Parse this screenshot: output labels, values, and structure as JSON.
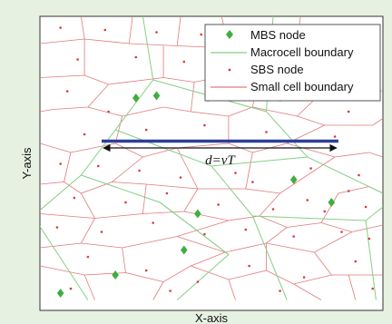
{
  "chart_data": {
    "type": "scatter",
    "xlabel": "X-axis",
    "ylabel": "Y-axis",
    "xlim": [
      0,
      1
    ],
    "ylim": [
      0,
      1
    ],
    "grid": false,
    "legend_placement": "top-right",
    "legend": [
      {
        "label": "MBS node",
        "marker": "diamond",
        "color": "#3fae3f"
      },
      {
        "label": "Macrocell boundary",
        "marker": "line",
        "color": "#86cf86"
      },
      {
        "label": "SBS node",
        "marker": "dot",
        "color": "#d23c3c"
      },
      {
        "label": "Small cell boundary",
        "marker": "line",
        "color": "#e07a7a"
      }
    ],
    "annotation": {
      "text": "d=vT",
      "arrow_from": [
        0.18,
        0.42
      ],
      "arrow_to": [
        0.87,
        0.42
      ],
      "trajectory_y": 0.45,
      "trajectory_color": "#2b3f9c"
    },
    "mbs_nodes": [
      {
        "x": 0.28,
        "y": 0.64
      },
      {
        "x": 0.34,
        "y": 0.65
      },
      {
        "x": 0.74,
        "y": 0.28
      },
      {
        "x": 0.85,
        "y": 0.18
      },
      {
        "x": 0.46,
        "y": 0.13
      },
      {
        "x": 0.42,
        "y": -0.03
      },
      {
        "x": 0.22,
        "y": -0.14
      },
      {
        "x": 0.06,
        "y": -0.22
      }
    ],
    "sbs_nodes": [
      {
        "x": 0.06,
        "y": 0.95
      },
      {
        "x": 0.19,
        "y": 0.94
      },
      {
        "x": 0.34,
        "y": 0.93
      },
      {
        "x": 0.47,
        "y": 0.92
      },
      {
        "x": 0.11,
        "y": 0.81
      },
      {
        "x": 0.28,
        "y": 0.82
      },
      {
        "x": 0.42,
        "y": 0.8
      },
      {
        "x": 0.08,
        "y": 0.67
      },
      {
        "x": 0.2,
        "y": 0.58
      },
      {
        "x": 0.49,
        "y": 0.63
      },
      {
        "x": 0.59,
        "y": 0.68
      },
      {
        "x": 0.7,
        "y": 0.63
      },
      {
        "x": 0.79,
        "y": 0.71
      },
      {
        "x": 0.9,
        "y": 0.58
      },
      {
        "x": 0.96,
        "y": 0.76
      },
      {
        "x": 0.13,
        "y": 0.48
      },
      {
        "x": 0.31,
        "y": 0.5
      },
      {
        "x": 0.48,
        "y": 0.52
      },
      {
        "x": 0.66,
        "y": 0.49
      },
      {
        "x": 0.86,
        "y": 0.47
      },
      {
        "x": 0.06,
        "y": 0.35
      },
      {
        "x": 0.17,
        "y": 0.34
      },
      {
        "x": 0.29,
        "y": 0.32
      },
      {
        "x": 0.41,
        "y": 0.29
      },
      {
        "x": 0.57,
        "y": 0.31
      },
      {
        "x": 0.62,
        "y": 0.27
      },
      {
        "x": 0.79,
        "y": 0.33
      },
      {
        "x": 0.93,
        "y": 0.3
      },
      {
        "x": 0.1,
        "y": 0.2
      },
      {
        "x": 0.25,
        "y": 0.18
      },
      {
        "x": 0.37,
        "y": 0.22
      },
      {
        "x": 0.52,
        "y": 0.17
      },
      {
        "x": 0.68,
        "y": 0.15
      },
      {
        "x": 0.78,
        "y": 0.19
      },
      {
        "x": 0.83,
        "y": 0.14
      },
      {
        "x": 0.9,
        "y": 0.23
      },
      {
        "x": 0.95,
        "y": 0.16
      },
      {
        "x": 0.05,
        "y": 0.07
      },
      {
        "x": 0.18,
        "y": 0.05
      },
      {
        "x": 0.33,
        "y": 0.09
      },
      {
        "x": 0.48,
        "y": 0.04
      },
      {
        "x": 0.6,
        "y": 0.06
      },
      {
        "x": 0.74,
        "y": 0.03
      },
      {
        "x": 0.88,
        "y": 0.05
      },
      {
        "x": 0.96,
        "y": 0.02
      },
      {
        "x": 0.14,
        "y": -0.06
      },
      {
        "x": 0.31,
        "y": -0.12
      },
      {
        "x": 0.46,
        "y": -0.17
      },
      {
        "x": 0.61,
        "y": -0.1
      },
      {
        "x": 0.77,
        "y": -0.15
      },
      {
        "x": 0.92,
        "y": -0.08
      },
      {
        "x": 0.09,
        "y": -0.2
      },
      {
        "x": 0.38,
        "y": -0.21
      },
      {
        "x": 0.7,
        "y": -0.21
      },
      {
        "x": 0.97,
        "y": -0.2
      }
    ],
    "macrocell_boundaries": [
      [
        [
          0.3,
          1.0
        ],
        [
          0.33,
          0.72
        ],
        [
          0.22,
          0.5
        ],
        [
          0.12,
          0.3
        ],
        [
          -0.02,
          0.12
        ]
      ],
      [
        [
          0.33,
          0.72
        ],
        [
          0.66,
          0.58
        ],
        [
          0.78,
          0.38
        ],
        [
          1.0,
          0.22
        ]
      ],
      [
        [
          0.66,
          0.58
        ],
        [
          0.68,
          1.0
        ]
      ],
      [
        [
          0.22,
          0.5
        ],
        [
          0.5,
          0.34
        ],
        [
          0.62,
          0.12
        ],
        [
          0.72,
          -0.25
        ]
      ],
      [
        [
          0.5,
          0.34
        ],
        [
          0.78,
          0.38
        ]
      ],
      [
        [
          0.62,
          0.12
        ],
        [
          0.95,
          0.1
        ],
        [
          1.0,
          0.16
        ]
      ],
      [
        [
          0.12,
          0.3
        ],
        [
          0.35,
          0.18
        ],
        [
          0.55,
          -0.05
        ],
        [
          0.4,
          -0.25
        ]
      ],
      [
        [
          0.35,
          0.18
        ],
        [
          0.55,
          -0.05
        ]
      ],
      [
        [
          0.95,
          0.1
        ],
        [
          0.98,
          -0.25
        ]
      ],
      [
        [
          -0.02,
          0.12
        ],
        [
          0.14,
          -0.25
        ]
      ]
    ],
    "small_cell_boundaries": [
      [
        [
          0.0,
          0.88
        ],
        [
          0.13,
          0.9
        ],
        [
          0.26,
          0.88
        ],
        [
          0.4,
          0.87
        ],
        [
          0.55,
          0.86
        ]
      ],
      [
        [
          0.13,
          0.9
        ],
        [
          0.12,
          1.0
        ]
      ],
      [
        [
          0.26,
          0.88
        ],
        [
          0.27,
          1.0
        ]
      ],
      [
        [
          0.4,
          0.87
        ],
        [
          0.41,
          1.0
        ]
      ],
      [
        [
          0.55,
          0.86
        ],
        [
          0.53,
          1.0
        ]
      ],
      [
        [
          0.55,
          0.86
        ],
        [
          0.64,
          0.78
        ],
        [
          0.74,
          0.8
        ],
        [
          0.86,
          0.72
        ],
        [
          1.0,
          0.67
        ]
      ],
      [
        [
          0.74,
          0.8
        ],
        [
          0.76,
          1.0
        ]
      ],
      [
        [
          0.86,
          0.72
        ],
        [
          0.88,
          0.8
        ]
      ],
      [
        [
          0.0,
          0.73
        ],
        [
          0.13,
          0.74
        ],
        [
          0.2,
          0.7
        ],
        [
          0.36,
          0.73
        ],
        [
          0.45,
          0.71
        ],
        [
          0.55,
          0.74
        ],
        [
          0.64,
          0.78
        ]
      ],
      [
        [
          0.13,
          0.74
        ],
        [
          0.13,
          0.9
        ]
      ],
      [
        [
          0.36,
          0.73
        ],
        [
          0.36,
          0.87
        ]
      ],
      [
        [
          0.2,
          0.7
        ],
        [
          0.14,
          0.6
        ],
        [
          0.04,
          0.59
        ],
        [
          0.0,
          0.58
        ]
      ],
      [
        [
          0.45,
          0.71
        ],
        [
          0.44,
          0.58
        ],
        [
          0.55,
          0.56
        ],
        [
          0.62,
          0.6
        ],
        [
          0.64,
          0.78
        ]
      ],
      [
        [
          0.62,
          0.6
        ],
        [
          0.75,
          0.56
        ],
        [
          0.86,
          0.72
        ]
      ],
      [
        [
          0.75,
          0.56
        ],
        [
          0.83,
          0.52
        ],
        [
          0.97,
          0.52
        ],
        [
          1.0,
          0.55
        ]
      ],
      [
        [
          0.14,
          0.6
        ],
        [
          0.24,
          0.56
        ],
        [
          0.36,
          0.6
        ],
        [
          0.44,
          0.58
        ]
      ],
      [
        [
          0.24,
          0.56
        ],
        [
          0.22,
          0.44
        ],
        [
          0.3,
          0.38
        ],
        [
          0.4,
          0.42
        ],
        [
          0.55,
          0.44
        ],
        [
          0.55,
          0.56
        ]
      ],
      [
        [
          0.0,
          0.44
        ],
        [
          0.09,
          0.4
        ],
        [
          0.22,
          0.44
        ]
      ],
      [
        [
          0.09,
          0.4
        ],
        [
          0.07,
          0.27
        ],
        [
          0.12,
          0.22
        ],
        [
          0.21,
          0.27
        ],
        [
          0.3,
          0.38
        ]
      ],
      [
        [
          0.55,
          0.44
        ],
        [
          0.62,
          0.4
        ],
        [
          0.72,
          0.44
        ],
        [
          0.83,
          0.52
        ]
      ],
      [
        [
          0.72,
          0.44
        ],
        [
          0.86,
          0.38
        ],
        [
          0.96,
          0.4
        ],
        [
          1.0,
          0.38
        ]
      ],
      [
        [
          0.62,
          0.4
        ],
        [
          0.6,
          0.24
        ],
        [
          0.7,
          0.22
        ],
        [
          0.86,
          0.38
        ]
      ],
      [
        [
          0.4,
          0.42
        ],
        [
          0.46,
          0.24
        ],
        [
          0.6,
          0.24
        ]
      ],
      [
        [
          0.21,
          0.27
        ],
        [
          0.31,
          0.26
        ],
        [
          0.46,
          0.24
        ]
      ],
      [
        [
          0.0,
          0.26
        ],
        [
          0.07,
          0.27
        ]
      ],
      [
        [
          0.12,
          0.22
        ],
        [
          0.16,
          0.11
        ],
        [
          0.3,
          0.13
        ],
        [
          0.31,
          0.26
        ]
      ],
      [
        [
          0.3,
          0.13
        ],
        [
          0.42,
          0.14
        ],
        [
          0.46,
          0.24
        ]
      ],
      [
        [
          0.0,
          0.13
        ],
        [
          0.16,
          0.11
        ]
      ],
      [
        [
          0.42,
          0.14
        ],
        [
          0.55,
          0.1
        ],
        [
          0.64,
          0.12
        ],
        [
          0.7,
          0.22
        ]
      ],
      [
        [
          0.64,
          0.12
        ],
        [
          0.72,
          0.07
        ],
        [
          0.82,
          0.09
        ],
        [
          0.87,
          0.22
        ],
        [
          0.96,
          0.25
        ],
        [
          1.0,
          0.22
        ]
      ],
      [
        [
          0.82,
          0.09
        ],
        [
          0.91,
          0.05
        ],
        [
          1.0,
          0.08
        ]
      ],
      [
        [
          0.16,
          0.11
        ],
        [
          0.12,
          0.0
        ],
        [
          0.0,
          -0.02
        ]
      ],
      [
        [
          0.12,
          0.0
        ],
        [
          0.24,
          -0.02
        ],
        [
          0.4,
          0.03
        ],
        [
          0.55,
          0.1
        ]
      ],
      [
        [
          0.4,
          0.03
        ],
        [
          0.54,
          -0.04
        ],
        [
          0.66,
          0.0
        ],
        [
          0.72,
          0.07
        ]
      ],
      [
        [
          0.66,
          0.0
        ],
        [
          0.8,
          -0.04
        ],
        [
          0.91,
          0.05
        ]
      ],
      [
        [
          0.8,
          -0.04
        ],
        [
          0.85,
          -0.14
        ],
        [
          1.0,
          -0.14
        ]
      ],
      [
        [
          0.24,
          -0.02
        ],
        [
          0.25,
          -0.13
        ],
        [
          0.36,
          -0.17
        ],
        [
          0.44,
          -0.1
        ],
        [
          0.54,
          -0.04
        ]
      ],
      [
        [
          0.44,
          -0.1
        ],
        [
          0.55,
          -0.16
        ],
        [
          0.66,
          -0.12
        ],
        [
          0.66,
          0.0
        ]
      ],
      [
        [
          0.66,
          -0.12
        ],
        [
          0.74,
          -0.18
        ],
        [
          0.85,
          -0.14
        ]
      ],
      [
        [
          0.0,
          -0.1
        ],
        [
          0.13,
          -0.14
        ],
        [
          0.25,
          -0.13
        ]
      ],
      [
        [
          0.13,
          -0.14
        ],
        [
          0.16,
          -0.25
        ]
      ],
      [
        [
          0.36,
          -0.17
        ],
        [
          0.33,
          -0.25
        ]
      ],
      [
        [
          0.55,
          -0.16
        ],
        [
          0.57,
          -0.25
        ]
      ],
      [
        [
          0.74,
          -0.18
        ],
        [
          0.82,
          -0.25
        ]
      ],
      [
        [
          0.9,
          -0.14
        ],
        [
          0.92,
          -0.25
        ]
      ]
    ]
  }
}
